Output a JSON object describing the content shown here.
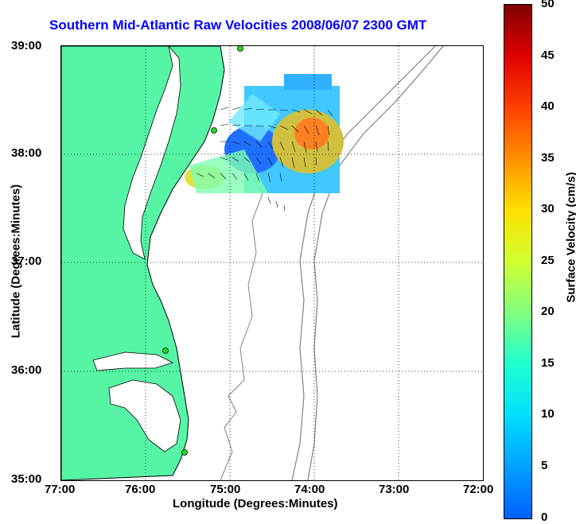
{
  "title": "Southern Mid-Atlantic Raw Velocities 2008/06/07 2300 GMT",
  "axes": {
    "xlabel": "Longitude (Degrees:Minutes)",
    "ylabel": "Latitude (Degrees:Minutes)",
    "xticks": [
      "77:00",
      "76:00",
      "75:00",
      "74:00",
      "73:00",
      "72:00"
    ],
    "yticks": [
      "39:00",
      "38:00",
      "37:00",
      "36:00",
      "35:00"
    ]
  },
  "colorbar": {
    "label": "Surface Velocity (cm/s)",
    "ticks": [
      "50",
      "45",
      "40",
      "35",
      "30",
      "25",
      "20",
      "15",
      "10",
      "5",
      "0"
    ]
  },
  "colors": {
    "title": "#0000ff",
    "land": "#55f5a5",
    "coastline": "#000000",
    "bathymetry": "#808080",
    "station_marker": "#22dd22"
  }
}
